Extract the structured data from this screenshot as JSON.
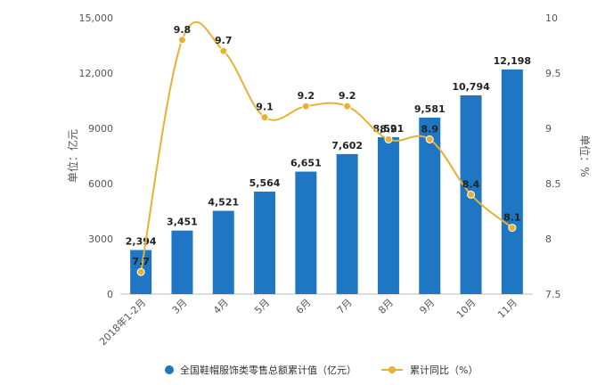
{
  "chart_data": {
    "type": "bar",
    "categories": [
      "2018年1-2月",
      "3月",
      "4月",
      "5月",
      "6月",
      "7月",
      "8月",
      "9月",
      "10月",
      "11月"
    ],
    "series": [
      {
        "name": "全国鞋帽服饰类零售总额累计值（亿元）",
        "type": "bar",
        "axis": "left",
        "values": [
          2394,
          3451,
          4521,
          5564,
          6651,
          7602,
          8521,
          9581,
          10794,
          12198
        ],
        "labels": [
          "2,394",
          "3,451",
          "4,521",
          "5,564",
          "6,651",
          "7,602",
          "8,521",
          "9,581",
          "10,794",
          "12,198"
        ]
      },
      {
        "name": "累计同比（%）",
        "type": "line",
        "axis": "right",
        "values": [
          7.7,
          9.8,
          9.7,
          9.1,
          9.2,
          9.2,
          8.9,
          8.9,
          8.4,
          8.1
        ],
        "labels": [
          "7.7",
          "9.8",
          "9.7",
          "9.1",
          "9.2",
          "9.2",
          "8.9",
          "8.9",
          "8.4",
          "8.1"
        ]
      }
    ],
    "y_left": {
      "label": "单位：亿元",
      "ylim": [
        0,
        15000
      ],
      "ticks": [
        0,
        3000,
        6000,
        9000,
        12000,
        15000
      ],
      "tick_labels": [
        "0",
        "3000",
        "6000",
        "9000",
        "12,000",
        "15,000"
      ]
    },
    "y_right": {
      "label": "单位：%",
      "ylim": [
        7.5,
        10
      ],
      "ticks": [
        7.5,
        8,
        8.5,
        9,
        9.5,
        10
      ],
      "tick_labels": [
        "7.5",
        "8",
        "8.5",
        "9",
        "9.5",
        "10"
      ]
    },
    "grid": false,
    "legend_position": "bottom",
    "colors": {
      "bar": "#1f77c4",
      "line": "#e8b034",
      "text": "#555555"
    }
  }
}
